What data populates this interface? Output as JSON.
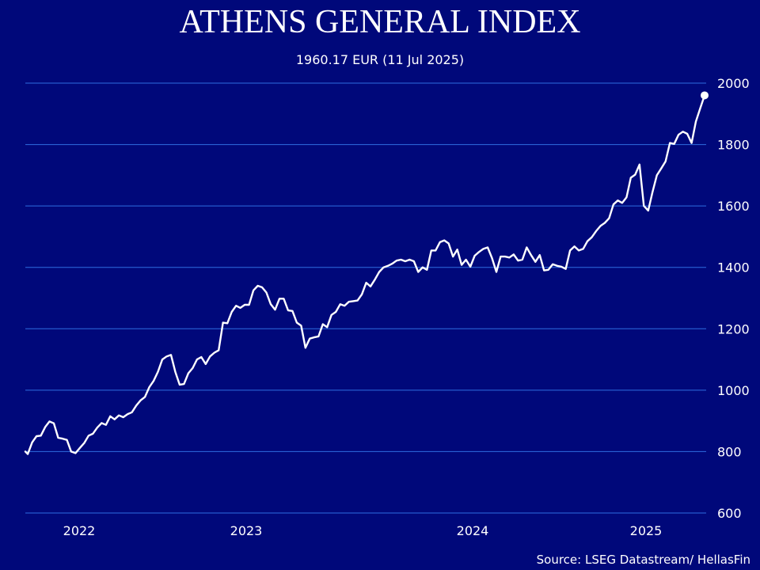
{
  "colors": {
    "background": "#00087a",
    "gridline": "#2e6de0",
    "line": "#ffffff"
  },
  "chart_data": {
    "type": "line",
    "title": "ATHENS GENERAL INDEX",
    "subtitle": "1960.17 EUR (11 Jul 2025)",
    "source": "Source: LSEG Datastream/ HellasFin",
    "x_axis": {
      "type": "date",
      "tick_labels": [
        "2022",
        "2023",
        "2024",
        "2025"
      ],
      "tick_dates": [
        "2022-01-01",
        "2023-01-01",
        "2024-01-01",
        "2025-01-01"
      ],
      "range": [
        "2021-09-30",
        "2025-07-11"
      ]
    },
    "y_axis": {
      "position": "right",
      "ylim": [
        600,
        2000
      ],
      "ticks": [
        600,
        800,
        1000,
        1200,
        1400,
        1600,
        1800,
        2000
      ],
      "grid": true
    },
    "end_marker": {
      "date": "2025-07-11",
      "value": 1960.17
    },
    "series": [
      {
        "points": [
          [
            "2021-09-30",
            800
          ],
          [
            "2021-10-04",
            792
          ],
          [
            "2021-10-11",
            830
          ],
          [
            "2021-10-18",
            850
          ],
          [
            "2021-10-25",
            852
          ],
          [
            "2021-11-01",
            880
          ],
          [
            "2021-11-08",
            898
          ],
          [
            "2021-11-15",
            892
          ],
          [
            "2021-11-22",
            845
          ],
          [
            "2021-11-29",
            842
          ],
          [
            "2021-12-06",
            838
          ],
          [
            "2021-12-13",
            800
          ],
          [
            "2021-12-20",
            795
          ],
          [
            "2021-12-27",
            812
          ],
          [
            "2022-01-03",
            828
          ],
          [
            "2022-01-10",
            852
          ],
          [
            "2022-01-17",
            858
          ],
          [
            "2022-01-24",
            878
          ],
          [
            "2022-01-31",
            893
          ],
          [
            "2022-02-07",
            887
          ],
          [
            "2022-02-14",
            915
          ],
          [
            "2022-02-21",
            905
          ],
          [
            "2022-02-28",
            918
          ],
          [
            "2022-03-07",
            912
          ],
          [
            "2022-03-14",
            922
          ],
          [
            "2022-03-21",
            928
          ],
          [
            "2022-03-28",
            950
          ],
          [
            "2022-04-04",
            967
          ],
          [
            "2022-04-11",
            978
          ],
          [
            "2022-04-18",
            1010
          ],
          [
            "2022-04-25",
            1030
          ],
          [
            "2022-05-02",
            1060
          ],
          [
            "2022-05-09",
            1100
          ],
          [
            "2022-05-16",
            1110
          ],
          [
            "2022-05-23",
            1115
          ],
          [
            "2022-05-30",
            1060
          ],
          [
            "2022-06-06",
            1018
          ],
          [
            "2022-06-13",
            1020
          ],
          [
            "2022-06-20",
            1055
          ],
          [
            "2022-06-27",
            1072
          ],
          [
            "2022-07-04",
            1100
          ],
          [
            "2022-07-11",
            1108
          ],
          [
            "2022-07-18",
            1085
          ],
          [
            "2022-07-25",
            1110
          ],
          [
            "2022-08-01",
            1122
          ],
          [
            "2022-08-08",
            1130
          ],
          [
            "2022-08-15",
            1220
          ],
          [
            "2022-08-22",
            1218
          ],
          [
            "2022-08-29",
            1255
          ],
          [
            "2022-09-05",
            1275
          ],
          [
            "2022-09-12",
            1268
          ],
          [
            "2022-09-19",
            1278
          ],
          [
            "2022-09-26",
            1278
          ],
          [
            "2022-10-03",
            1325
          ],
          [
            "2022-10-10",
            1340
          ],
          [
            "2022-10-17",
            1335
          ],
          [
            "2022-10-24",
            1318
          ],
          [
            "2022-10-31",
            1280
          ],
          [
            "2022-11-07",
            1262
          ],
          [
            "2022-11-14",
            1298
          ],
          [
            "2022-11-21",
            1298
          ],
          [
            "2022-11-28",
            1260
          ],
          [
            "2022-12-05",
            1258
          ],
          [
            "2022-12-12",
            1220
          ],
          [
            "2022-12-19",
            1210
          ],
          [
            "2022-12-26",
            1138
          ],
          [
            "2023-01-02",
            1168
          ],
          [
            "2023-01-09",
            1172
          ],
          [
            "2023-01-16",
            1175
          ],
          [
            "2023-01-23",
            1215
          ],
          [
            "2023-01-30",
            1205
          ],
          [
            "2023-02-06",
            1245
          ],
          [
            "2023-02-13",
            1255
          ],
          [
            "2023-02-20",
            1280
          ],
          [
            "2023-02-27",
            1275
          ],
          [
            "2023-03-06",
            1288
          ],
          [
            "2023-03-13",
            1290
          ],
          [
            "2023-03-20",
            1292
          ],
          [
            "2023-03-27",
            1312
          ],
          [
            "2023-04-03",
            1350
          ],
          [
            "2023-04-10",
            1338
          ],
          [
            "2023-04-17",
            1360
          ],
          [
            "2023-04-24",
            1385
          ],
          [
            "2023-05-01",
            1400
          ],
          [
            "2023-05-08",
            1405
          ],
          [
            "2023-05-15",
            1412
          ],
          [
            "2023-05-22",
            1422
          ],
          [
            "2023-05-29",
            1425
          ],
          [
            "2023-06-05",
            1420
          ],
          [
            "2023-06-12",
            1425
          ],
          [
            "2023-06-19",
            1420
          ],
          [
            "2023-06-26",
            1385
          ],
          [
            "2023-07-03",
            1400
          ],
          [
            "2023-07-10",
            1392
          ],
          [
            "2023-07-17",
            1455
          ],
          [
            "2023-07-24",
            1455
          ],
          [
            "2023-07-31",
            1482
          ],
          [
            "2023-08-07",
            1488
          ],
          [
            "2023-08-14",
            1478
          ],
          [
            "2023-08-21",
            1435
          ],
          [
            "2023-08-28",
            1458
          ],
          [
            "2023-09-04",
            1408
          ],
          [
            "2023-09-11",
            1425
          ],
          [
            "2023-09-18",
            1402
          ],
          [
            "2023-09-25",
            1438
          ],
          [
            "2023-10-02",
            1450
          ],
          [
            "2023-10-09",
            1460
          ],
          [
            "2023-10-16",
            1465
          ],
          [
            "2023-10-23",
            1430
          ],
          [
            "2023-10-30",
            1385
          ],
          [
            "2023-11-06",
            1435
          ],
          [
            "2023-11-13",
            1435
          ],
          [
            "2023-11-20",
            1432
          ],
          [
            "2023-11-27",
            1442
          ],
          [
            "2023-12-04",
            1422
          ],
          [
            "2023-12-11",
            1425
          ],
          [
            "2023-12-18",
            1465
          ],
          [
            "2023-12-25",
            1440
          ],
          [
            "2024-01-01",
            1418
          ],
          [
            "2024-01-08",
            1440
          ],
          [
            "2024-01-15",
            1390
          ],
          [
            "2024-01-22",
            1392
          ],
          [
            "2024-01-29",
            1410
          ],
          [
            "2024-02-05",
            1405
          ],
          [
            "2024-02-12",
            1402
          ],
          [
            "2024-02-19",
            1395
          ],
          [
            "2024-02-26",
            1455
          ],
          [
            "2024-03-04",
            1468
          ],
          [
            "2024-03-11",
            1455
          ],
          [
            "2024-03-18",
            1460
          ],
          [
            "2024-03-25",
            1485
          ],
          [
            "2024-04-01",
            1498
          ],
          [
            "2024-04-08",
            1518
          ],
          [
            "2024-04-15",
            1535
          ],
          [
            "2024-04-22",
            1545
          ],
          [
            "2024-04-29",
            1560
          ],
          [
            "2024-05-06",
            1605
          ],
          [
            "2024-05-13",
            1618
          ],
          [
            "2024-05-20",
            1610
          ],
          [
            "2024-05-27",
            1628
          ],
          [
            "2024-06-03",
            1692
          ],
          [
            "2024-06-10",
            1702
          ],
          [
            "2024-06-17",
            1735
          ],
          [
            "2024-06-24",
            1600
          ],
          [
            "2024-07-01",
            1585
          ],
          [
            "2024-07-08",
            1645
          ],
          [
            "2024-07-15",
            1700
          ],
          [
            "2024-07-22",
            1722
          ],
          [
            "2024-07-29",
            1745
          ],
          [
            "2024-08-05",
            1805
          ],
          [
            "2024-08-12",
            1802
          ],
          [
            "2024-08-19",
            1832
          ],
          [
            "2024-08-26",
            1842
          ],
          [
            "2024-09-02",
            1835
          ],
          [
            "2024-09-09",
            1805
          ],
          [
            "2024-09-16",
            1875
          ],
          [
            "2024-09-23",
            1918
          ],
          [
            "2024-09-30",
            1960
          ]
        ]
      }
    ]
  }
}
